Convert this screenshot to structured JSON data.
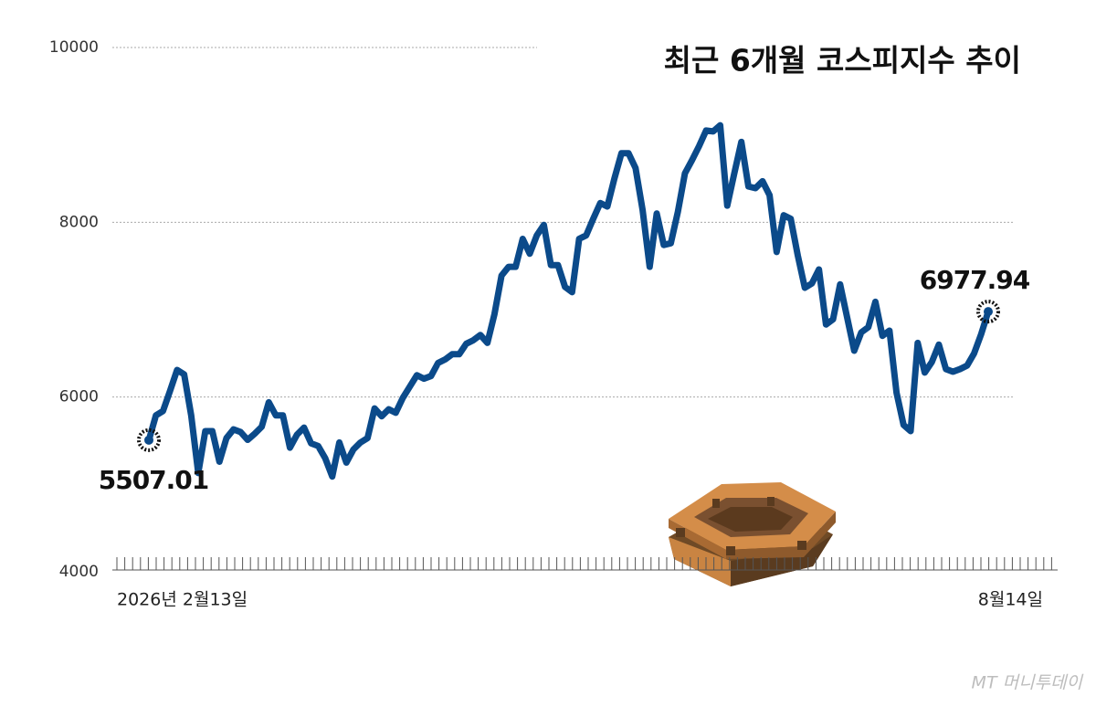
{
  "chart_data": {
    "type": "line",
    "title": "최근 6개월 코스피지수 추이",
    "categories": [
      "2026년 2월13일",
      null,
      null,
      null,
      null,
      null,
      null,
      null,
      null,
      null,
      null,
      null,
      null,
      null,
      null,
      null,
      null,
      null,
      null,
      null,
      null,
      null,
      null,
      null,
      null,
      null,
      null,
      null,
      null,
      null,
      null,
      null,
      null,
      null,
      null,
      null,
      null,
      null,
      null,
      null,
      null,
      null,
      null,
      null,
      null,
      null,
      null,
      null,
      null,
      null,
      null,
      null,
      null,
      null,
      null,
      null,
      null,
      null,
      null,
      null,
      null,
      null,
      null,
      null,
      null,
      null,
      null,
      null,
      null,
      null,
      null,
      null,
      null,
      null,
      null,
      null,
      null,
      null,
      null,
      null,
      null,
      null,
      null,
      null,
      null,
      null,
      null,
      null,
      null,
      null,
      null,
      null,
      null,
      null,
      null,
      null,
      null,
      null,
      null,
      null,
      null,
      null,
      null,
      null,
      null,
      null,
      null,
      null,
      null,
      null,
      null,
      null,
      null,
      null,
      null,
      null,
      null,
      null,
      null,
      "8월14일"
    ],
    "series": [
      {
        "color": "#0b4a8a",
        "values": [
          5507.01,
          5790,
          5840,
          6070,
          6310,
          6260,
          5790,
          5130,
          5610,
          5610,
          5260,
          5530,
          5630,
          5600,
          5510,
          5580,
          5660,
          5940,
          5790,
          5790,
          5420,
          5570,
          5650,
          5470,
          5440,
          5300,
          5090,
          5480,
          5250,
          5400,
          5480,
          5530,
          5870,
          5780,
          5860,
          5820,
          5990,
          6120,
          6250,
          6210,
          6240,
          6390,
          6430,
          6490,
          6490,
          6610,
          6650,
          6710,
          6620,
          6950,
          7390,
          7490,
          7490,
          7810,
          7640,
          7850,
          7970,
          7510,
          7510,
          7260,
          7200,
          7810,
          7850,
          8040,
          8220,
          8180,
          8500,
          8790,
          8790,
          8620,
          8140,
          7490,
          8100,
          7740,
          7760,
          8120,
          8560,
          8710,
          8870,
          9050,
          9040,
          9110,
          8190,
          8560,
          8920,
          8410,
          8390,
          8470,
          8310,
          7660,
          8080,
          8040,
          7620,
          7250,
          7300,
          7460,
          6830,
          6890,
          7290,
          6910,
          6530,
          6740,
          6800,
          7090,
          6700,
          6760,
          6050,
          5680,
          5610,
          6620,
          6280,
          6400,
          6600,
          6320,
          6290,
          6320,
          6360,
          6500,
          6720,
          6977.94
        ]
      }
    ],
    "ylim": [
      4000,
      10000
    ],
    "yticks": [
      4000,
      6000,
      8000,
      10000
    ],
    "grid": true,
    "watermark": "MT 머니투데이"
  }
}
